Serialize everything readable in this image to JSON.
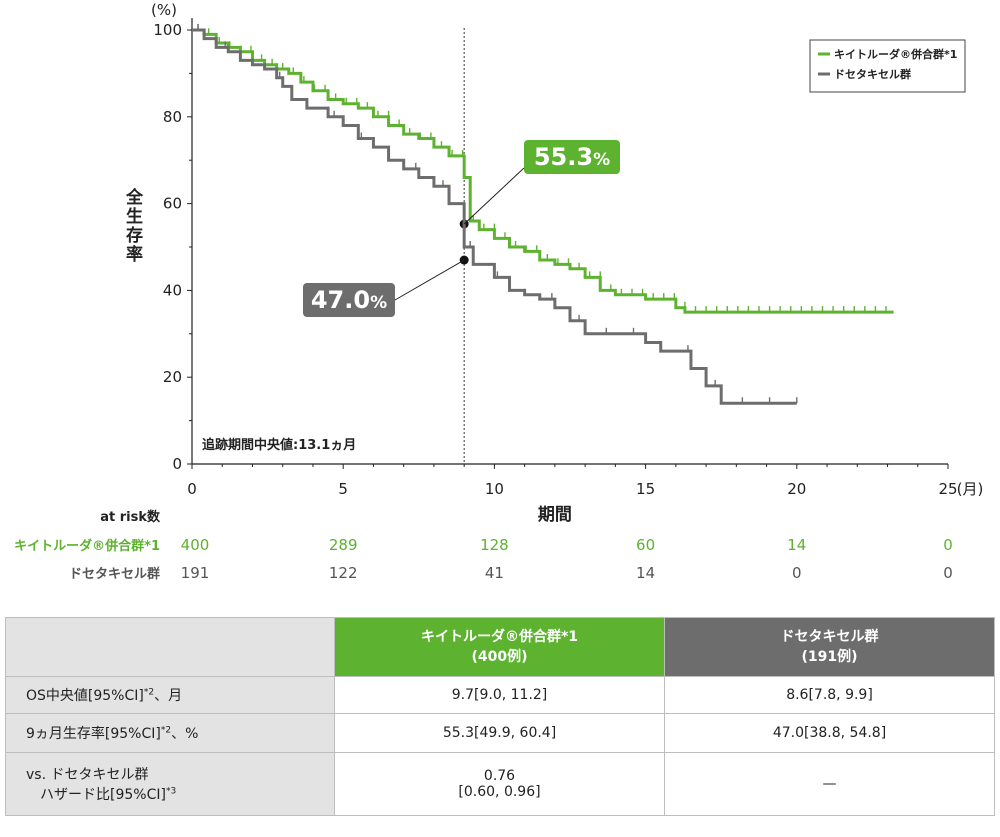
{
  "chart_data": {
    "type": "line",
    "y_unit_label": "(%)",
    "ylabel": "全生存率",
    "xlabel": "期間",
    "x_unit_label": "(月)",
    "xlim": [
      0,
      25
    ],
    "ylim": [
      0,
      100
    ],
    "x_ticks": [
      0,
      5,
      10,
      15,
      20,
      25
    ],
    "y_ticks": [
      0,
      20,
      40,
      60,
      80,
      100
    ],
    "reference_line_x": 9,
    "annotation_followup": "追跡期間中央値:13.1ヵ月",
    "legend_position": "top-right",
    "series": [
      {
        "name": "キイトルーダ®併合群*1",
        "color": "#5db22f",
        "step_points": [
          [
            0,
            100
          ],
          [
            0.4,
            99
          ],
          [
            0.8,
            97
          ],
          [
            1.2,
            96
          ],
          [
            1.6,
            95
          ],
          [
            2,
            93
          ],
          [
            2.4,
            92
          ],
          [
            2.8,
            91
          ],
          [
            3.2,
            90
          ],
          [
            3.6,
            88
          ],
          [
            4,
            86
          ],
          [
            4.5,
            84
          ],
          [
            5,
            83
          ],
          [
            5.5,
            82
          ],
          [
            6,
            80
          ],
          [
            6.5,
            78
          ],
          [
            7,
            76
          ],
          [
            7.5,
            75
          ],
          [
            8,
            73
          ],
          [
            8.5,
            71
          ],
          [
            9,
            66
          ],
          [
            9.2,
            56
          ],
          [
            9.5,
            54
          ],
          [
            10,
            52
          ],
          [
            10.5,
            50
          ],
          [
            11,
            49
          ],
          [
            11.5,
            47
          ],
          [
            12,
            46
          ],
          [
            12.5,
            45
          ],
          [
            13,
            43
          ],
          [
            13.5,
            40
          ],
          [
            14,
            39
          ],
          [
            15,
            38
          ],
          [
            15.5,
            38
          ],
          [
            16,
            36
          ],
          [
            16.3,
            35
          ],
          [
            17,
            35
          ],
          [
            20,
            35
          ],
          [
            23.2,
            35
          ]
        ],
        "censor_step": 0.35,
        "marked_point": {
          "x": 9,
          "y": 55.3,
          "label": "55.3",
          "suffix": "%"
        }
      },
      {
        "name": "ドセタキセル群",
        "color": "#6d6d6d",
        "step_points": [
          [
            0,
            100
          ],
          [
            0.4,
            98
          ],
          [
            0.8,
            96
          ],
          [
            1.2,
            95
          ],
          [
            1.6,
            93
          ],
          [
            2,
            92
          ],
          [
            2.4,
            91
          ],
          [
            2.8,
            89
          ],
          [
            3,
            87
          ],
          [
            3.3,
            84
          ],
          [
            3.8,
            82
          ],
          [
            4.5,
            80
          ],
          [
            5,
            78
          ],
          [
            5.5,
            75
          ],
          [
            6,
            73
          ],
          [
            6.5,
            70
          ],
          [
            7,
            68
          ],
          [
            7.5,
            66
          ],
          [
            8,
            64
          ],
          [
            8.5,
            60
          ],
          [
            9,
            50
          ],
          [
            9.3,
            46
          ],
          [
            10,
            43
          ],
          [
            10.5,
            40
          ],
          [
            11,
            39
          ],
          [
            11.5,
            38
          ],
          [
            12,
            36
          ],
          [
            12.5,
            33
          ],
          [
            13,
            30
          ],
          [
            14,
            30
          ],
          [
            14.5,
            30
          ],
          [
            15,
            28
          ],
          [
            15.5,
            26
          ],
          [
            16,
            26
          ],
          [
            16.5,
            22
          ],
          [
            17,
            18
          ],
          [
            17.5,
            14
          ],
          [
            18,
            14
          ],
          [
            20,
            14
          ]
        ],
        "censor_step": 0.9,
        "marked_point": {
          "x": 9,
          "y": 47.0,
          "label": "47.0",
          "suffix": "%"
        }
      }
    ],
    "at_risk": {
      "title": "at risk数",
      "rows": [
        {
          "label": "キイトルーダ®併合群*1",
          "color": "#5db22f",
          "values": [
            "400",
            "289",
            "128",
            "60",
            "14",
            "0"
          ]
        },
        {
          "label": "ドセタキセル群",
          "color": "#555555",
          "values": [
            "191",
            "122",
            "41",
            "14",
            "0",
            "0"
          ]
        }
      ]
    }
  },
  "table": {
    "col1_line1": "キイトルーダ®併合群*1",
    "col1_line2": "(400例)",
    "col2_line1": "ドセタキセル群",
    "col2_line2": "(191例)",
    "rows": [
      {
        "label": "OS中央値[95%CI]",
        "sup": "*2",
        "tail": "、月",
        "v1": "9.7[9.0, 11.2]",
        "v2": "8.6[7.8, 9.9]"
      },
      {
        "label": "9ヵ月生存率[95%CI]",
        "sup": "*2",
        "tail": "、%",
        "v1": "55.3[49.9, 60.4]",
        "v2": "47.0[38.8, 54.8]"
      }
    ],
    "hr_row": {
      "label_line1": "vs. ドセタキセル群",
      "label_line2": "ハザード比[95%CI]",
      "sup": "*3",
      "v1_line1": "0.76",
      "v1_line2": "[0.60, 0.96]",
      "v2": "—"
    }
  }
}
